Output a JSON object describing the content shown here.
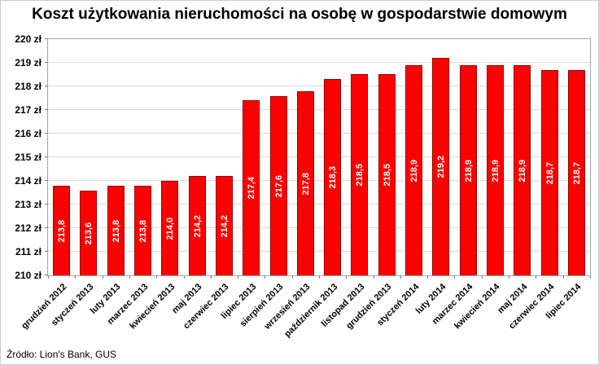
{
  "source_note": "Źródło: Lion's Bank, GUS",
  "chart_data": {
    "type": "bar",
    "title": "Koszt użytkowania nieruchomości na osobę w gospodarstwie domowym",
    "categories": [
      "grudzień 2012",
      "styczeń 2013",
      "luty 2013",
      "marzec 2013",
      "kwiecień 2013",
      "maj 2013",
      "czerwiec 2013",
      "lipiec 2013",
      "sierpień 2013",
      "wrzesień 2013",
      "październik 2013",
      "listopad 2013",
      "grudzień 2013",
      "styczeń 2014",
      "luty 2014",
      "marzec 2014",
      "kwiecień 2014",
      "maj 2014",
      "czerwiec 2014",
      "lipiec 2014"
    ],
    "values": [
      213.8,
      213.6,
      213.8,
      213.8,
      214.0,
      214.2,
      214.2,
      217.4,
      217.6,
      217.8,
      218.3,
      218.5,
      218.5,
      218.9,
      219.2,
      218.9,
      218.9,
      218.9,
      218.7,
      218.7
    ],
    "value_labels": [
      "213,8",
      "213,6",
      "213,8",
      "213,8",
      "214,0",
      "214,2",
      "214,2",
      "217,4",
      "217,6",
      "217,8",
      "218,3",
      "218,5",
      "218,5",
      "218,9",
      "219,2",
      "218,9",
      "218,9",
      "218,9",
      "218,7",
      "218,7"
    ],
    "yticks": [
      "210 zł",
      "211 zł",
      "212 zł",
      "213 zł",
      "214 zł",
      "215 zł",
      "216 zł",
      "217 zł",
      "218 zł",
      "219 zł",
      "220 zł"
    ],
    "ylim": [
      210,
      220
    ],
    "ytick_step": 1,
    "xlabel": "",
    "ylabel": "",
    "grid": true,
    "legend": "none",
    "bar_color": "#ff0000",
    "bar_border_color": "#990000",
    "bar_label_color": "#ffffff"
  }
}
